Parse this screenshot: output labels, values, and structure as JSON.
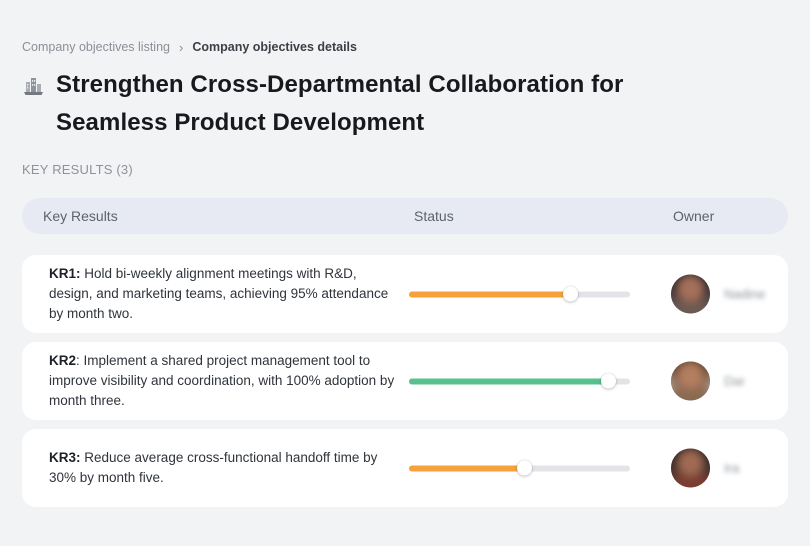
{
  "breadcrumb": {
    "parent": "Company objectives listing",
    "separator": "›",
    "current": "Company objectives details"
  },
  "page": {
    "title": "Strengthen Cross-Departmental Collaboration for Seamless Product Development",
    "title_icon": "buildings-icon",
    "section_label": "KEY RESULTS (3)"
  },
  "table": {
    "headers": {
      "key_results": "Key Results",
      "status": "Status",
      "owner": "Owner"
    },
    "rows": [
      {
        "kr_label": "KR1:",
        "kr_text": " Hold bi-weekly alignment meetings with R&D, design, and marketing teams, achieving 95% attendance by month two.",
        "progress_percent": 73,
        "progress_color": "#F6A13B",
        "owner_name": "Nadine",
        "avatar_colors": {
          "bg": "#4a4448",
          "hair": "#2b2326",
          "skin": "#a5705a",
          "body": "#6b5a52"
        }
      },
      {
        "kr_label": "KR2",
        "kr_text": ": Implement a shared project management tool to improve visibility and coordination, with 100% adoption by month three.",
        "progress_percent": 90,
        "progress_color": "#57C08D",
        "owner_name": "Dar",
        "avatar_colors": {
          "bg": "#b9a99c",
          "hair": "#5f4130",
          "skin": "#b47e60",
          "body": "#8a6a52"
        }
      },
      {
        "kr_label": "KR3:",
        "kr_text": " Reduce average cross-functional handoff time by 30% by month five.",
        "progress_percent": 52,
        "progress_color": "#F6A13B",
        "owner_name": "Ira",
        "avatar_colors": {
          "bg": "#3f332f",
          "hair": "#2a201e",
          "skin": "#a06a52",
          "body": "#7a3c30"
        }
      }
    ]
  },
  "colors": {
    "page_bg": "#F2F3F5",
    "header_bg": "#E7EAF2",
    "card_bg": "#FFFFFF",
    "track": "#E3E4E7",
    "accent_orange": "#F6A13B",
    "accent_green": "#57C08D"
  }
}
